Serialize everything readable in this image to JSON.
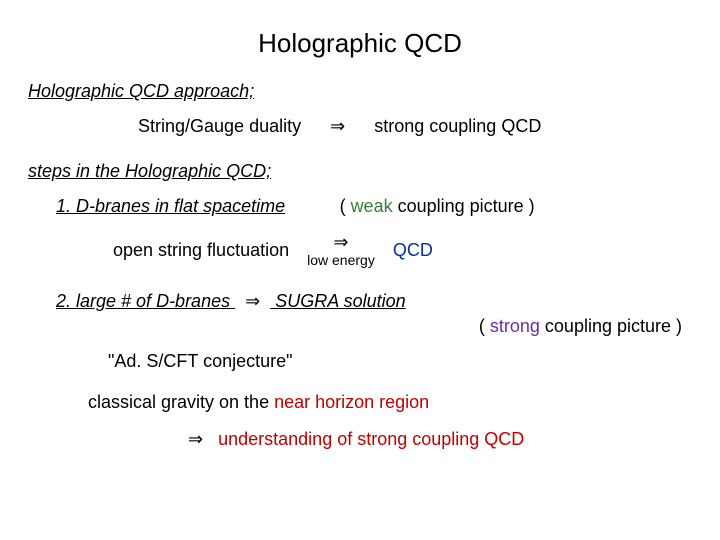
{
  "title": "Holographic QCD",
  "approach_heading": "Holographic QCD approach;",
  "row1": {
    "left": "String/Gauge duality",
    "arrow": "⇒",
    "right": "strong coupling QCD"
  },
  "steps_heading": "steps in the Holographic QCD;",
  "step1": {
    "label": "1.   D-branes in flat spacetime",
    "paren_open": "( ",
    "paren_weak": "weak",
    "paren_rest": " coupling picture )"
  },
  "open_row": {
    "left": "open string fluctuation",
    "arrow": "⇒",
    "sub": "low energy",
    "right": "QCD"
  },
  "step2": {
    "prefix": "2.   large # of D-branes",
    "arrow": "⇒",
    "suffix": "SUGRA solution"
  },
  "paren2": {
    "open": "( ",
    "strong": "strong",
    "rest": " coupling picture )"
  },
  "quote": "\"Ad. S/CFT conjecture\"",
  "classical": {
    "pre": "classical gravity on the ",
    "red": "near horizon region"
  },
  "final": {
    "arrow": "⇒",
    "text": "understanding of strong coupling QCD"
  },
  "colors": {
    "green": "#3b7a3a",
    "blue": "#0033a0",
    "purple": "#6e2ca8",
    "red": "#c00000",
    "text": "#000000",
    "bg": "#ffffff"
  }
}
